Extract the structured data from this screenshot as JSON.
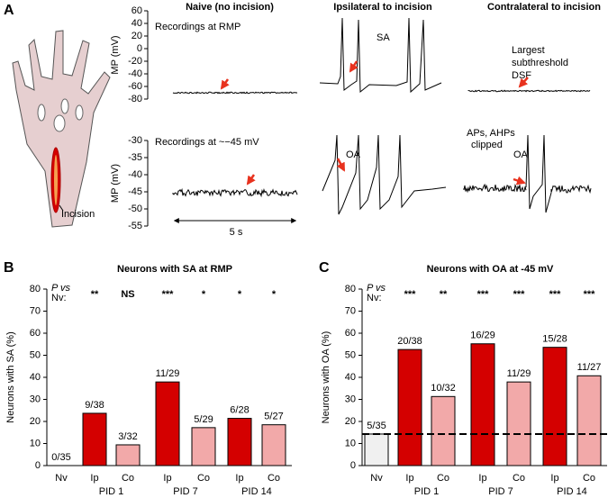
{
  "chart_data": [
    {
      "type": "trace",
      "panel_label": "A",
      "column_titles": [
        "Naive (no incision)",
        "Ipsilateral to incision",
        "Contralateral to incision"
      ],
      "annotations": [
        "Recordings at RMP",
        "SA"
      ],
      "note_lines": [
        "Largest",
        "subthreshold",
        "DSF"
      ],
      "paw_label": "Incision",
      "ylabel": "MP (mV)",
      "ylim": [
        -80,
        60
      ],
      "yticks": [
        60,
        40,
        20,
        0,
        -20,
        -40,
        -60,
        -80
      ]
    },
    {
      "type": "trace",
      "annotations": [
        "Recordings at ~−45 mV",
        "OA",
        "OA"
      ],
      "note_lines": [
        "APs, AHPs",
        "clipped"
      ],
      "scale_bar": "5 s",
      "ylabel": "MP (mV)",
      "ylim": [
        -55,
        -30
      ],
      "yticks": [
        -30,
        -35,
        -40,
        -45,
        -50,
        -55
      ]
    },
    {
      "type": "bar",
      "panel_label": "B",
      "title": "Neurons with SA at RMP",
      "ylabel": "Neurons with SA  (%)",
      "ylim": [
        0,
        80
      ],
      "yticks": [
        0,
        10,
        20,
        30,
        40,
        50,
        60,
        70,
        80
      ],
      "categories": [
        "Nv",
        "Ip",
        "Co",
        "Ip",
        "Co",
        "Ip",
        "Co"
      ],
      "groups": [
        "PID 1",
        "PID 7",
        "PID 14"
      ],
      "values": [
        0,
        23.7,
        9.4,
        37.9,
        17.2,
        21.4,
        18.5
      ],
      "value_labels": [
        "0/35",
        "9/38",
        "3/32",
        "11/29",
        "5/29",
        "6/28",
        "5/27"
      ],
      "colors": [
        "#f0f0f0",
        "#d40000",
        "#f2a9a9",
        "#d40000",
        "#f2a9a9",
        "#d40000",
        "#f2a9a9"
      ],
      "stat_label": [
        "P vs",
        "Nv:"
      ],
      "significance": [
        "**",
        "NS",
        "***",
        "*",
        "*",
        "*"
      ],
      "reference_line": false
    },
    {
      "type": "bar",
      "panel_label": "C",
      "title": "Neurons with OA at -45 mV",
      "ylabel": "Neurons with OA  (%)",
      "ylim": [
        0,
        80
      ],
      "yticks": [
        0,
        10,
        20,
        30,
        40,
        50,
        60,
        70,
        80
      ],
      "categories": [
        "Nv",
        "Ip",
        "Co",
        "Ip",
        "Co",
        "Ip",
        "Co"
      ],
      "groups": [
        "PID 1",
        "PID 7",
        "PID 14"
      ],
      "values": [
        14.3,
        52.6,
        31.3,
        55.2,
        37.9,
        53.6,
        40.7
      ],
      "value_labels": [
        "5/35",
        "20/38",
        "10/32",
        "16/29",
        "11/29",
        "15/28",
        "11/27"
      ],
      "colors": [
        "#f0f0f0",
        "#d40000",
        "#f2a9a9",
        "#d40000",
        "#f2a9a9",
        "#d40000",
        "#f2a9a9"
      ],
      "stat_label": [
        "P vs",
        "Nv:"
      ],
      "significance": [
        "***",
        "**",
        "***",
        "***",
        "***",
        "***"
      ],
      "reference_line": true
    }
  ]
}
